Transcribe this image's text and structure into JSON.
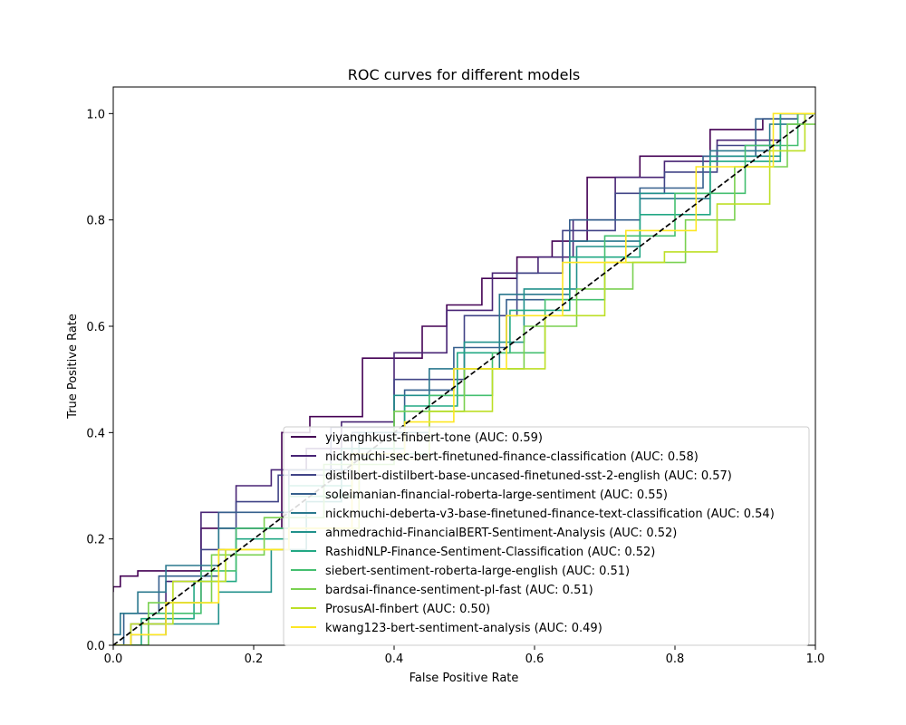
{
  "chart_data": {
    "type": "line",
    "title": "ROC curves for different models",
    "xlabel": "False Positive Rate",
    "ylabel": "True Positive Rate",
    "xlim": [
      0.0,
      1.0
    ],
    "ylim": [
      0.0,
      1.05
    ],
    "xticks": [
      "0.0",
      "0.2",
      "0.4",
      "0.6",
      "0.8",
      "1.0"
    ],
    "yticks": [
      "0.0",
      "0.2",
      "0.4",
      "0.6",
      "0.8",
      "1.0"
    ],
    "grid": false,
    "legend_position": "lower-right",
    "diagonal": {
      "points": [
        [
          0,
          0
        ],
        [
          1,
          1
        ]
      ],
      "color": "#000000",
      "style": "dashed"
    },
    "series": [
      {
        "name": "yiyanghkust-finbert-tone (AUC: 0.59)",
        "color": "#440154",
        "points": [
          [
            0,
            0.1
          ],
          [
            0,
            0.11
          ],
          [
            0.02,
            0.13
          ],
          [
            0.05,
            0.14
          ],
          [
            0.2,
            0.22
          ],
          [
            0.28,
            0.4
          ],
          [
            0.28,
            0.43
          ],
          [
            0.43,
            0.54
          ],
          [
            0.45,
            0.6
          ],
          [
            0.5,
            0.64
          ],
          [
            0.55,
            0.69
          ],
          [
            0.6,
            0.73
          ],
          [
            0.65,
            0.76
          ],
          [
            0.7,
            0.88
          ],
          [
            0.8,
            0.92
          ],
          [
            0.9,
            0.97
          ],
          [
            0.95,
            0.99
          ],
          [
            1,
            1
          ]
        ]
      },
      {
        "name": "nickmuchi-sec-bert-finetuned-finance-classification (AUC: 0.58)",
        "color": "#482475",
        "points": [
          [
            0,
            0
          ],
          [
            0.05,
            0.04
          ],
          [
            0.1,
            0.12
          ],
          [
            0.15,
            0.25
          ],
          [
            0.2,
            0.3
          ],
          [
            0.25,
            0.33
          ],
          [
            0.3,
            0.37
          ],
          [
            0.35,
            0.42
          ],
          [
            0.45,
            0.55
          ],
          [
            0.5,
            0.63
          ],
          [
            0.58,
            0.7
          ],
          [
            0.63,
            0.73
          ],
          [
            0.68,
            0.8
          ],
          [
            0.75,
            0.88
          ],
          [
            0.82,
            0.91
          ],
          [
            0.9,
            0.95
          ],
          [
            1,
            1
          ]
        ]
      },
      {
        "name": "distilbert-distilbert-base-uncased-finetuned-sst-2-english (AUC: 0.57)",
        "color": "#414487",
        "points": [
          [
            0,
            0
          ],
          [
            0.05,
            0.02
          ],
          [
            0.1,
            0.08
          ],
          [
            0.15,
            0.18
          ],
          [
            0.2,
            0.27
          ],
          [
            0.27,
            0.32
          ],
          [
            0.35,
            0.41
          ],
          [
            0.45,
            0.5
          ],
          [
            0.55,
            0.62
          ],
          [
            0.6,
            0.7
          ],
          [
            0.68,
            0.78
          ],
          [
            0.75,
            0.85
          ],
          [
            0.82,
            0.89
          ],
          [
            0.9,
            0.94
          ],
          [
            1,
            1
          ]
        ]
      },
      {
        "name": "soleimanian-financial-roberta-large-sentiment (AUC: 0.55)",
        "color": "#355f8d",
        "points": [
          [
            0,
            0
          ],
          [
            0.03,
            0.06
          ],
          [
            0.1,
            0.13
          ],
          [
            0.2,
            0.25
          ],
          [
            0.3,
            0.33
          ],
          [
            0.38,
            0.4
          ],
          [
            0.45,
            0.48
          ],
          [
            0.52,
            0.56
          ],
          [
            0.6,
            0.65
          ],
          [
            0.7,
            0.8
          ],
          [
            0.8,
            0.86
          ],
          [
            0.88,
            0.92
          ],
          [
            0.95,
            0.99
          ],
          [
            1,
            1
          ]
        ]
      },
      {
        "name": "nickmuchi-deberta-v3-base-finetuned-finance-text-classification (AUC: 0.54)",
        "color": "#2a788e",
        "points": [
          [
            0,
            0.02
          ],
          [
            0.02,
            0.06
          ],
          [
            0.05,
            0.1
          ],
          [
            0.1,
            0.15
          ],
          [
            0.2,
            0.22
          ],
          [
            0.3,
            0.28
          ],
          [
            0.4,
            0.4
          ],
          [
            0.5,
            0.52
          ],
          [
            0.6,
            0.66
          ],
          [
            0.7,
            0.76
          ],
          [
            0.8,
            0.84
          ],
          [
            0.9,
            0.93
          ],
          [
            0.97,
            0.98
          ],
          [
            1,
            1
          ]
        ]
      },
      {
        "name": "ahmedrachid-FinancialBERT-Sentiment-Analysis (AUC: 0.52)",
        "color": "#21918c",
        "points": [
          [
            0,
            0
          ],
          [
            0.1,
            0.04
          ],
          [
            0.2,
            0.1
          ],
          [
            0.25,
            0.18
          ],
          [
            0.3,
            0.27
          ],
          [
            0.35,
            0.37
          ],
          [
            0.45,
            0.47
          ],
          [
            0.55,
            0.57
          ],
          [
            0.62,
            0.67
          ],
          [
            0.7,
            0.75
          ],
          [
            0.8,
            0.85
          ],
          [
            0.9,
            0.92
          ],
          [
            1,
            1
          ]
        ]
      },
      {
        "name": "RashidNLP-Finance-Sentiment-Classification (AUC: 0.52)",
        "color": "#22a884",
        "points": [
          [
            0,
            0
          ],
          [
            0.08,
            0.05
          ],
          [
            0.15,
            0.12
          ],
          [
            0.2,
            0.2
          ],
          [
            0.3,
            0.3
          ],
          [
            0.38,
            0.37
          ],
          [
            0.45,
            0.45
          ],
          [
            0.53,
            0.55
          ],
          [
            0.6,
            0.63
          ],
          [
            0.7,
            0.73
          ],
          [
            0.8,
            0.81
          ],
          [
            0.9,
            0.91
          ],
          [
            1,
            1
          ]
        ]
      },
      {
        "name": "siebert-sentiment-roberta-large-english (AUC: 0.51)",
        "color": "#44bf70",
        "points": [
          [
            0,
            0
          ],
          [
            0.1,
            0.06
          ],
          [
            0.15,
            0.14
          ],
          [
            0.2,
            0.22
          ],
          [
            0.3,
            0.28
          ],
          [
            0.4,
            0.36
          ],
          [
            0.5,
            0.47
          ],
          [
            0.58,
            0.55
          ],
          [
            0.65,
            0.65
          ],
          [
            0.75,
            0.77
          ],
          [
            0.85,
            0.85
          ],
          [
            0.95,
            0.94
          ],
          [
            1,
            1
          ]
        ]
      },
      {
        "name": "bardsai-finance-sentiment-pl-fast (AUC: 0.51)",
        "color": "#7ad151",
        "points": [
          [
            0,
            0
          ],
          [
            0.1,
            0.08
          ],
          [
            0.18,
            0.17
          ],
          [
            0.25,
            0.24
          ],
          [
            0.35,
            0.34
          ],
          [
            0.45,
            0.44
          ],
          [
            0.55,
            0.52
          ],
          [
            0.62,
            0.6
          ],
          [
            0.7,
            0.67
          ],
          [
            0.78,
            0.72
          ],
          [
            0.85,
            0.8
          ],
          [
            0.92,
            0.9
          ],
          [
            1,
            0.98
          ]
        ]
      },
      {
        "name": "ProsusAI-finbert (AUC: 0.50)",
        "color": "#bddf26",
        "points": [
          [
            0,
            0
          ],
          [
            0.05,
            0.04
          ],
          [
            0.12,
            0.12
          ],
          [
            0.2,
            0.18
          ],
          [
            0.3,
            0.22
          ],
          [
            0.4,
            0.35
          ],
          [
            0.5,
            0.44
          ],
          [
            0.58,
            0.52
          ],
          [
            0.65,
            0.62
          ],
          [
            0.75,
            0.72
          ],
          [
            0.82,
            0.74
          ],
          [
            0.9,
            0.83
          ],
          [
            0.97,
            0.93
          ],
          [
            1,
            1
          ]
        ]
      },
      {
        "name": "kwang123-bert-sentiment-analysis (AUC: 0.49)",
        "color": "#fde725",
        "points": [
          [
            0,
            0
          ],
          [
            0.05,
            0.02
          ],
          [
            0.1,
            0.08
          ],
          [
            0.2,
            0.18
          ],
          [
            0.3,
            0.22
          ],
          [
            0.38,
            0.36
          ],
          [
            0.45,
            0.42
          ],
          [
            0.52,
            0.52
          ],
          [
            0.6,
            0.62
          ],
          [
            0.68,
            0.72
          ],
          [
            0.78,
            0.78
          ],
          [
            0.88,
            0.9
          ],
          [
            1,
            1
          ]
        ]
      }
    ]
  }
}
